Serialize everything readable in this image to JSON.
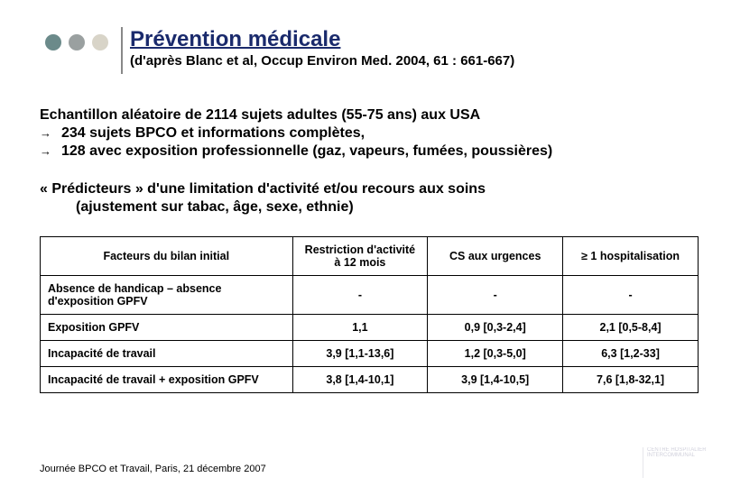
{
  "header": {
    "dot_colors": [
      "#6b8a8a",
      "#9aa0a0",
      "#d8d4c8"
    ],
    "title": "Prévention médicale",
    "subtitle": "(d'après Blanc et al, Occup Environ Med. 2004, 61 : 661-667)"
  },
  "body": {
    "para1_line1": "Echantillon aléatoire de 2114 sujets adultes (55-75 ans) aux USA",
    "para1_bullet1": "234 sujets BPCO et informations complètes,",
    "para1_bullet2": "128 avec exposition professionnelle (gaz, vapeurs, fumées, poussières)",
    "para2_line1": "« Prédicteurs » d'une limitation d'activité et/ou recours aux soins",
    "para2_line2": "(ajustement sur tabac, âge, sexe, ethnie)"
  },
  "table": {
    "headers": [
      "Facteurs du bilan initial",
      "Restriction d'activité à 12 mois",
      "CS aux urgences",
      "≥ 1 hospitalisation"
    ],
    "rows": [
      {
        "label": "Absence de handicap – absence d'exposition GPFV",
        "cells": [
          "-",
          "-",
          "-"
        ]
      },
      {
        "label": "Exposition GPFV",
        "cells": [
          "1,1",
          "0,9 [0,3-2,4]",
          "2,1 [0,5-8,4]"
        ]
      },
      {
        "label": "Incapacité de travail",
        "cells": [
          "3,9 [1,1-13,6]",
          "1,2 [0,3-5,0]",
          "6,3 [1,2-33]"
        ]
      },
      {
        "label": "Incapacité de travail + exposition GPFV",
        "cells": [
          "3,8 [1,4-10,1]",
          "3,9 [1,4-10,5]",
          "7,6 [1,8-32,1]"
        ]
      }
    ]
  },
  "footer": "Journée BPCO et Travail, Paris, 21 décembre 2007",
  "logo_text": "CENTRE HOSPITALIER INTERCOMMUNAL"
}
